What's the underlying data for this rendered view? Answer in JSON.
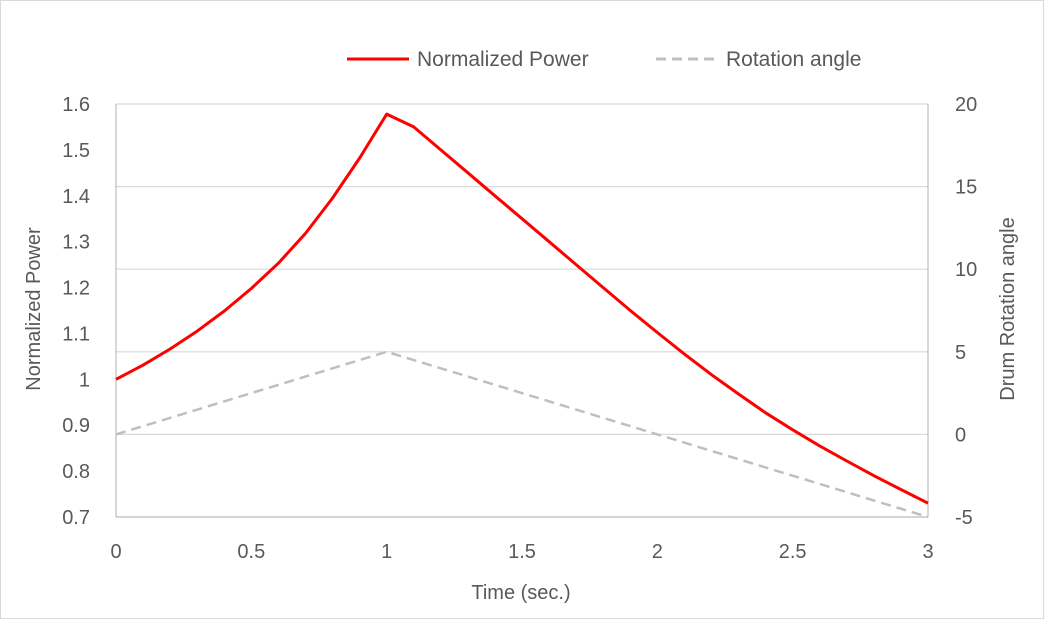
{
  "chart_data": {
    "type": "line",
    "title": "",
    "xlabel": "Time (sec.)",
    "ylabel": "Normalized Power",
    "y2label": "Drum Rotation angle",
    "xlim": [
      0,
      3
    ],
    "ylim": [
      0.7,
      1.6
    ],
    "y2lim": [
      -5,
      20
    ],
    "x_ticks": [
      "0",
      "0.5",
      "1",
      "1.5",
      "2",
      "2.5",
      "3"
    ],
    "y_ticks": [
      "0.7",
      "0.8",
      "0.9",
      "1",
      "1.1",
      "1.2",
      "1.3",
      "1.4",
      "1.5",
      "1.6"
    ],
    "y2_ticks": [
      "-5",
      "0",
      "5",
      "10",
      "15",
      "20"
    ],
    "grid": "horizontal",
    "legend_position": "top",
    "series": [
      {
        "name": "Normalized Power",
        "axis": "left",
        "color": "#ff0000",
        "style": "solid",
        "x": [
          0,
          0.1,
          0.2,
          0.3,
          0.4,
          0.5,
          0.6,
          0.7,
          0.8,
          0.9,
          1.0,
          1.1,
          1.2,
          1.3,
          1.4,
          1.5,
          1.6,
          1.7,
          1.8,
          1.9,
          2.0,
          2.1,
          2.2,
          2.3,
          2.4,
          2.5,
          2.6,
          2.7,
          2.8,
          2.9,
          3.0
        ],
        "values": [
          1.0,
          1.031,
          1.066,
          1.105,
          1.149,
          1.198,
          1.253,
          1.318,
          1.395,
          1.482,
          1.578,
          1.55,
          1.5,
          1.45,
          1.4,
          1.35,
          1.3,
          1.25,
          1.2,
          1.15,
          1.102,
          1.055,
          1.01,
          0.968,
          0.927,
          0.89,
          0.855,
          0.822,
          0.79,
          0.76,
          0.73
        ]
      },
      {
        "name": "Rotation angle",
        "axis": "right",
        "color": "#bfbfbf",
        "style": "dashed",
        "x": [
          0,
          1,
          3
        ],
        "values": [
          0,
          5,
          -5
        ]
      }
    ]
  }
}
